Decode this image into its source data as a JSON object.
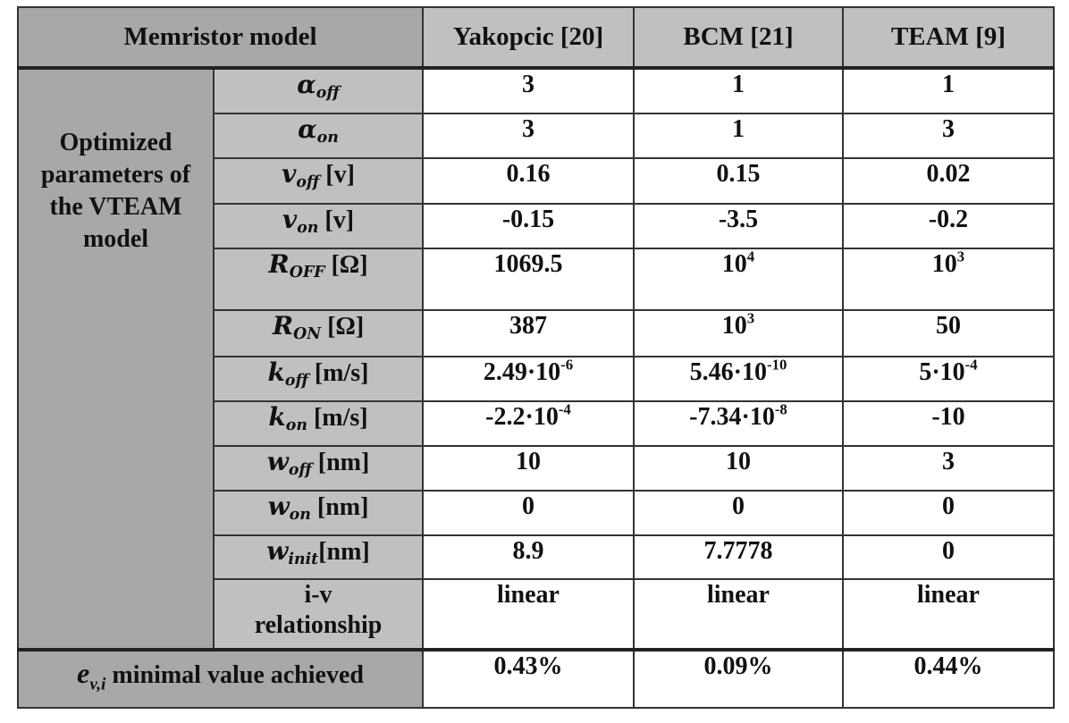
{
  "header": {
    "model_label": "Memristor model",
    "columns": [
      "Yakopcic [20]",
      "BCM [21]",
      "TEAM [9]"
    ]
  },
  "group_label": "Optimized parameters of the VTEAM model",
  "rows": [
    {
      "sym": "α",
      "sub": "off",
      "unit": "",
      "values": [
        "3",
        "1",
        "1"
      ]
    },
    {
      "sym": "α",
      "sub": "on",
      "unit": "",
      "values": [
        "3",
        "1",
        "3"
      ]
    },
    {
      "sym": "v",
      "sub": "off",
      "unit": " [v]",
      "values": [
        "0.16",
        "0.15",
        "0.02"
      ]
    },
    {
      "sym": "v",
      "sub": "on",
      "unit": " [v]",
      "values": [
        "-0.15",
        "-3.5",
        "-0.2"
      ]
    },
    {
      "sym": "R",
      "sub": "OFF",
      "unit": "  [Ω]",
      "values": [
        {
          "base": "1069.5",
          "exp": ""
        },
        {
          "base": "10",
          "exp": "4"
        },
        {
          "base": "10",
          "exp": "3"
        }
      ]
    },
    {
      "sym": "R",
      "sub": "ON",
      "unit": " [Ω]",
      "values": [
        {
          "base": "387",
          "exp": ""
        },
        {
          "base": "10",
          "exp": "3"
        },
        {
          "base": "50",
          "exp": ""
        }
      ]
    },
    {
      "sym": "k",
      "sub": "off",
      "unit": " [m/s]",
      "values": [
        {
          "base": "2.49·10",
          "exp": "-6"
        },
        {
          "base": "5.46·10",
          "exp": "-10"
        },
        {
          "base": "5·10",
          "exp": "-4"
        }
      ]
    },
    {
      "sym": "k",
      "sub": "on",
      "unit": " [m/s]",
      "values": [
        {
          "base": "-2.2·10",
          "exp": "-4"
        },
        {
          "base": "-7.34·10",
          "exp": "-8"
        },
        {
          "base": "-10",
          "exp": ""
        }
      ]
    },
    {
      "sym": "w",
      "sub": "off",
      "unit": " [nm]",
      "values": [
        "10",
        "10",
        "3"
      ]
    },
    {
      "sym": "w",
      "sub": "on",
      "unit": " [nm]",
      "values": [
        "0",
        "0",
        "0"
      ]
    },
    {
      "sym": "w",
      "sub": "init",
      "unit": "[nm]",
      "values": [
        "8.9",
        "7.7778",
        "0"
      ]
    },
    {
      "label_line1": "i-v",
      "label_line2": "relationship",
      "values": [
        "linear",
        "linear",
        "linear"
      ]
    }
  ],
  "footer": {
    "sym": "e",
    "sub": "v,i",
    "text": " minimal value achieved",
    "values": [
      "0.43%",
      "0.09%",
      "0.44%"
    ]
  }
}
